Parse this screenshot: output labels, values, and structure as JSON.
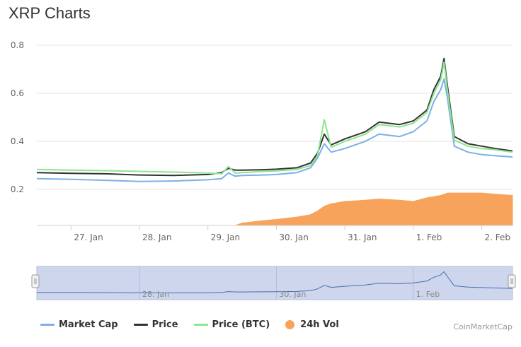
{
  "title": "XRP Charts",
  "credit": "CoinMarketCap",
  "colors": {
    "market_cap": "#7cb0e6",
    "price": "#333333",
    "price_btc": "#8ce68c",
    "volume": "#f7a35c",
    "navigator_fill": "#cdd6ec",
    "navigator_line": "#4a6cb3"
  },
  "chart_data": {
    "type": "line",
    "title": "XRP Charts",
    "x_tick_labels": [
      "27. Jan",
      "28. Jan",
      "29. Jan",
      "30. Jan",
      "31. Jan",
      "1. Feb",
      "2. Feb"
    ],
    "y_tick_labels": [
      "0.2",
      "0.4",
      "0.6",
      "0.8"
    ],
    "ylim": [
      0.05,
      0.8
    ],
    "x_days": [
      26.5,
      27,
      27.5,
      28,
      28.5,
      29,
      29.2,
      29.3,
      29.4,
      29.5,
      29.8,
      30.0,
      30.3,
      30.5,
      30.6,
      30.7,
      30.8,
      31.0,
      31.3,
      31.5,
      31.8,
      32.0,
      32.2,
      32.3,
      32.4,
      32.45,
      32.5,
      32.6,
      32.8,
      33.0,
      33.2,
      33.45
    ],
    "series": [
      {
        "name": "Market Cap",
        "values": [
          0.245,
          0.242,
          0.238,
          0.233,
          0.235,
          0.24,
          0.245,
          0.268,
          0.255,
          0.258,
          0.26,
          0.262,
          0.27,
          0.29,
          0.33,
          0.39,
          0.355,
          0.37,
          0.4,
          0.43,
          0.42,
          0.44,
          0.485,
          0.565,
          0.615,
          0.66,
          0.58,
          0.38,
          0.355,
          0.345,
          0.34,
          0.335
        ]
      },
      {
        "name": "Price",
        "values": [
          0.27,
          0.267,
          0.265,
          0.26,
          0.258,
          0.262,
          0.27,
          0.288,
          0.28,
          0.28,
          0.282,
          0.284,
          0.29,
          0.31,
          0.35,
          0.43,
          0.385,
          0.41,
          0.44,
          0.48,
          0.47,
          0.485,
          0.53,
          0.615,
          0.67,
          0.745,
          0.63,
          0.42,
          0.39,
          0.38,
          0.37,
          0.36
        ]
      },
      {
        "name": "Price (BTC)",
        "values": [
          0.283,
          0.28,
          0.278,
          0.275,
          0.272,
          0.268,
          0.265,
          0.295,
          0.268,
          0.27,
          0.275,
          0.277,
          0.283,
          0.3,
          0.34,
          0.49,
          0.375,
          0.4,
          0.43,
          0.47,
          0.46,
          0.475,
          0.52,
          0.6,
          0.655,
          0.73,
          0.61,
          0.405,
          0.38,
          0.37,
          0.365,
          0.355
        ]
      }
    ],
    "volume": {
      "name": "24h Vol",
      "values": [
        0.0,
        0.0,
        0.0,
        0.0,
        0.0,
        0.0,
        0.0,
        0.0,
        0.0,
        0.01,
        0.02,
        0.025,
        0.035,
        0.045,
        0.06,
        0.08,
        0.09,
        0.1,
        0.105,
        0.11,
        0.105,
        0.1,
        0.115,
        0.12,
        0.125,
        0.13,
        0.135,
        0.135,
        0.135,
        0.135,
        0.13,
        0.125
      ]
    },
    "navigator": {
      "x_tick_labels": [
        "28. Jan",
        "30. Jan",
        "1. Feb"
      ]
    },
    "legend": [
      "Market Cap",
      "Price",
      "Price (BTC)",
      "24h Vol"
    ],
    "legend_position": "bottom",
    "grid": true
  }
}
